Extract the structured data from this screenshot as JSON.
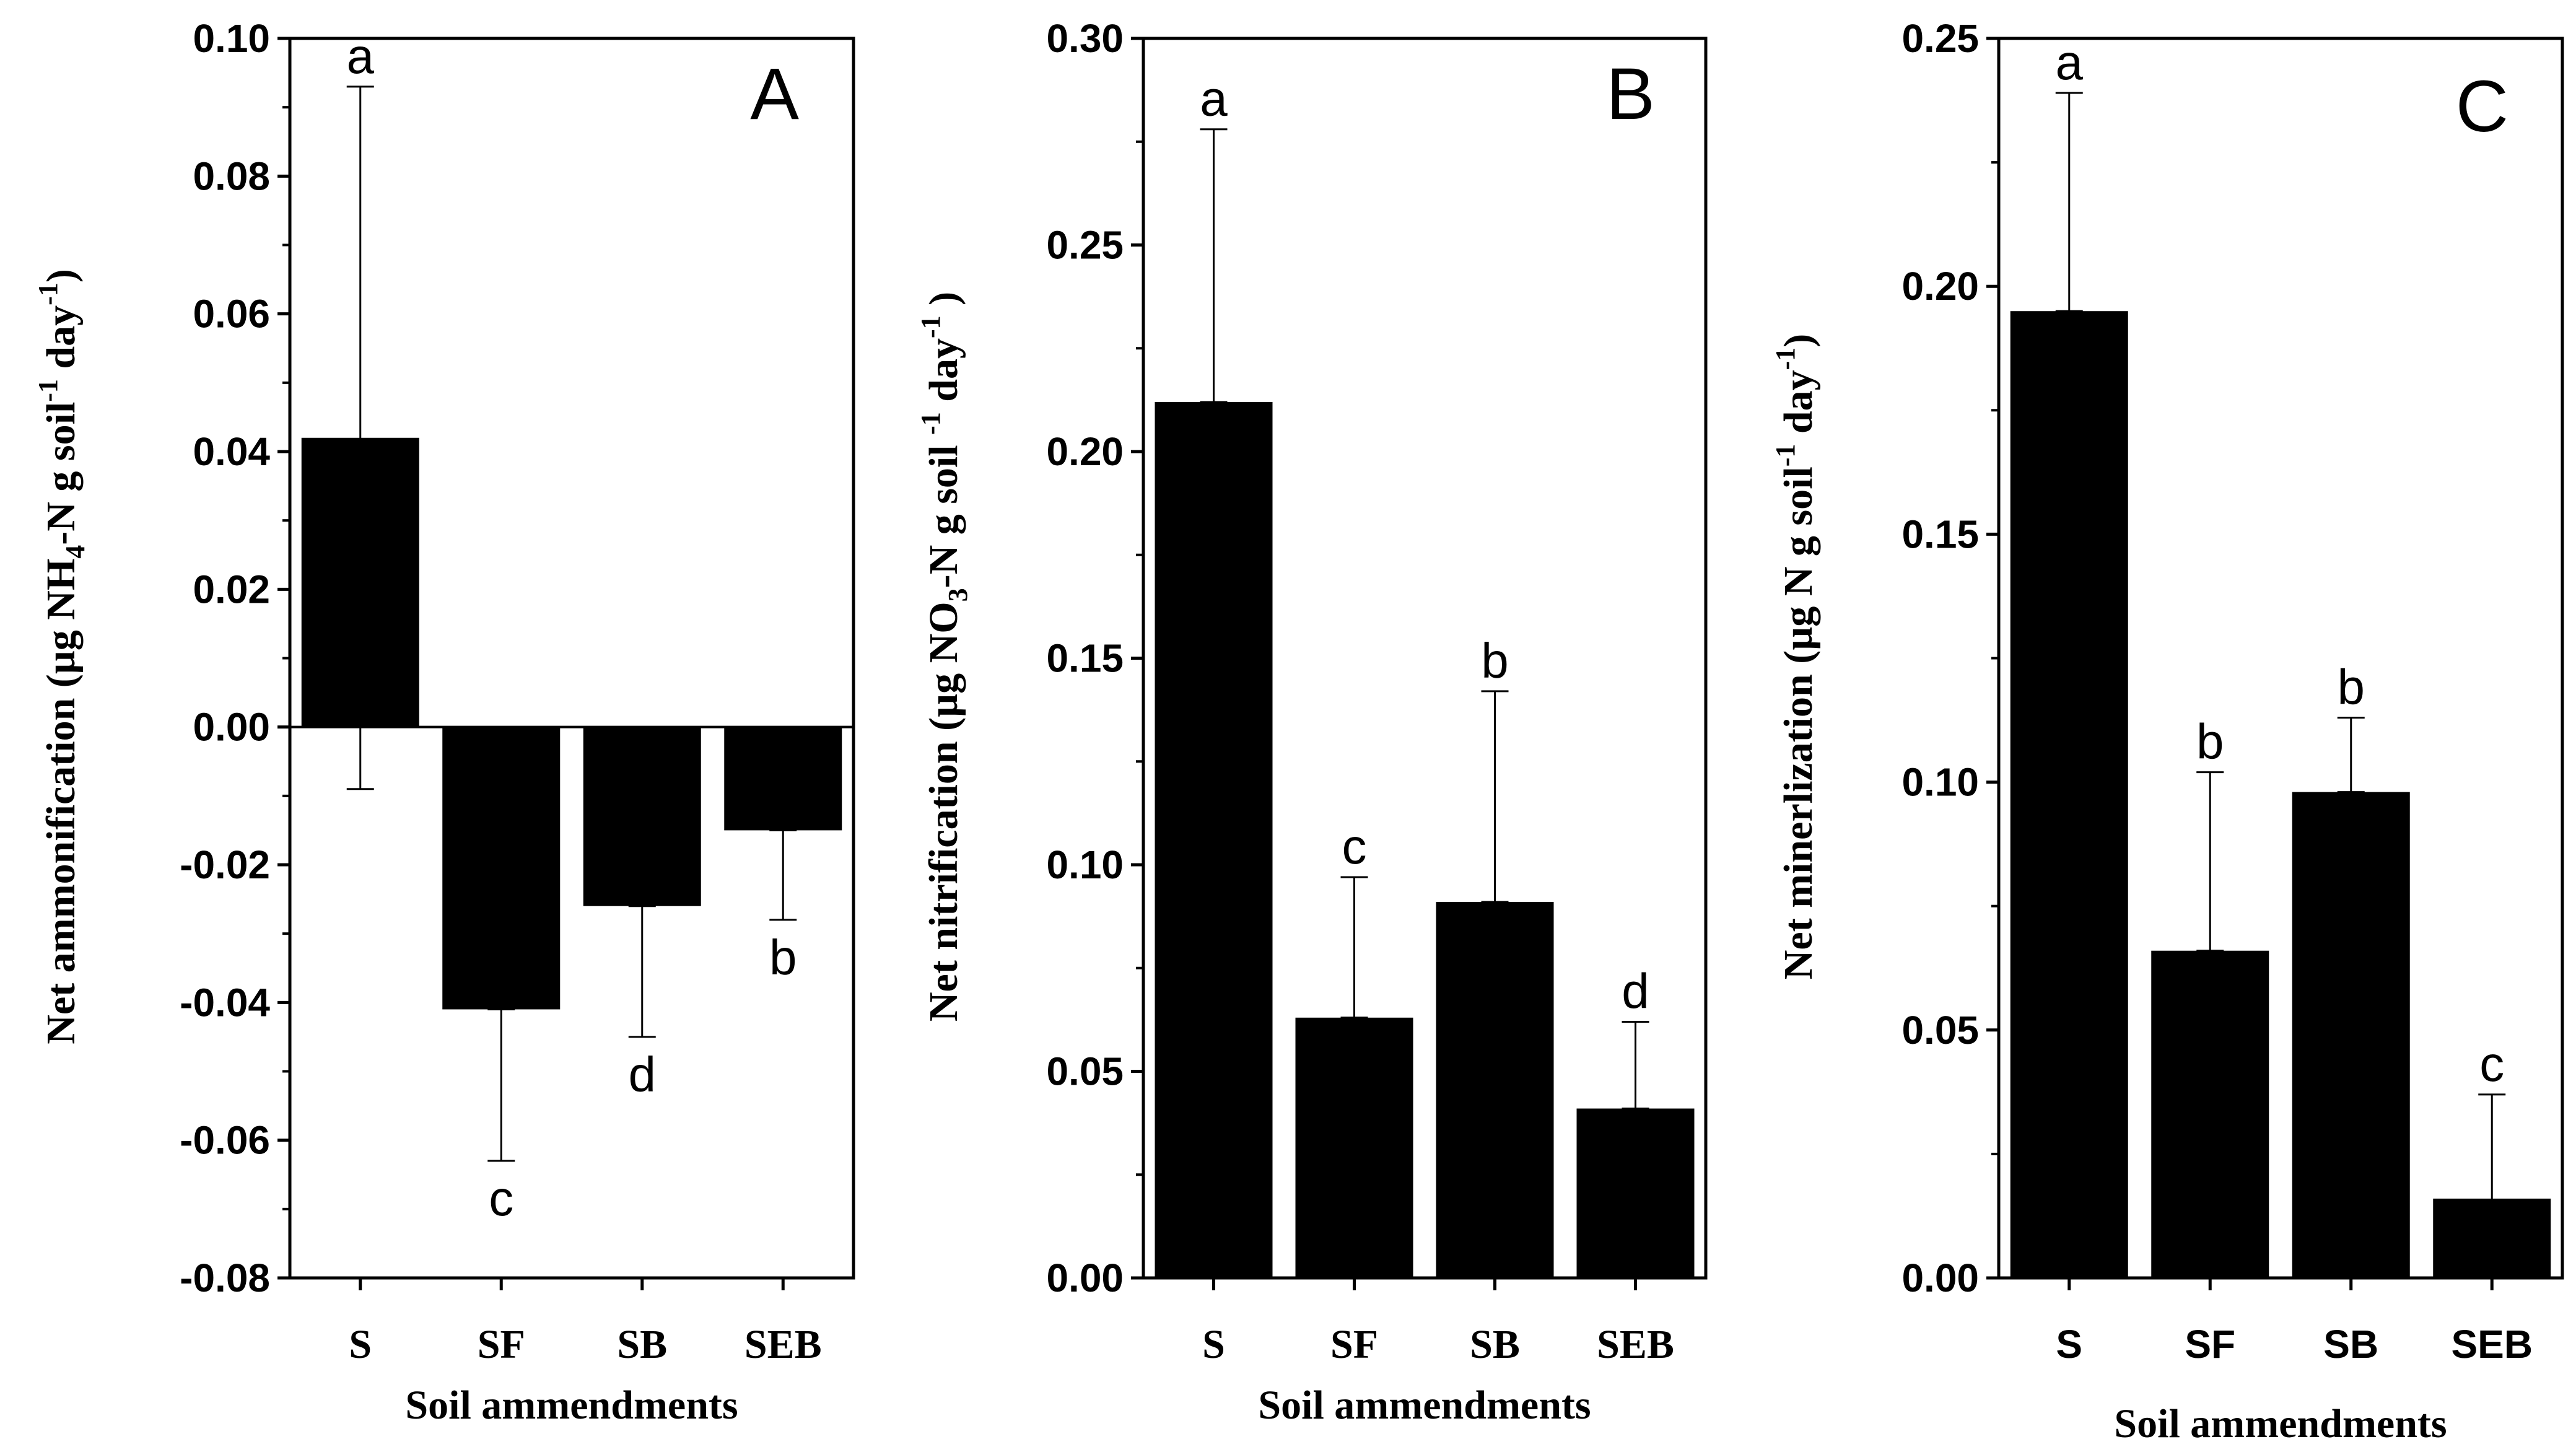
{
  "chart_data": [
    {
      "type": "bar",
      "panel_label": "A",
      "categories": [
        "S",
        "SF",
        "SB",
        "SEB"
      ],
      "values": [
        0.042,
        -0.041,
        -0.026,
        -0.015
      ],
      "error_bars": [
        {
          "low": -0.009,
          "high": 0.093
        },
        {
          "low": -0.063,
          "high": -0.041
        },
        {
          "low": -0.045,
          "high": -0.026
        },
        {
          "low": -0.028,
          "high": -0.015
        }
      ],
      "significance_letters": [
        "a",
        "c",
        "d",
        "b"
      ],
      "ylim": [
        -0.08,
        0.1
      ],
      "yticks": [
        "-0.08",
        "-0.06",
        "-0.04",
        "-0.02",
        "0.00",
        "0.02",
        "0.04",
        "0.06",
        "0.08",
        "0.10"
      ],
      "ylabel": {
        "pre": "Net ammonification  (µg NH",
        "sub": "4",
        "mid": "-N g soil",
        "sup": "-1",
        "post": " day",
        "sup2": "-1",
        "end": ")"
      },
      "xlabel": "Soil ammendments"
    },
    {
      "type": "bar",
      "panel_label": "B",
      "categories": [
        "S",
        "SF",
        "SB",
        "SEB"
      ],
      "values": [
        0.212,
        0.063,
        0.091,
        0.041
      ],
      "error_bars": [
        {
          "low": 0.212,
          "high": 0.278
        },
        {
          "low": 0.063,
          "high": 0.097
        },
        {
          "low": 0.091,
          "high": 0.142
        },
        {
          "low": 0.041,
          "high": 0.062
        }
      ],
      "significance_letters": [
        "a",
        "c",
        "b",
        "d"
      ],
      "ylim": [
        0,
        0.3
      ],
      "yticks": [
        "0.00",
        "0.05",
        "0.10",
        "0.15",
        "0.20",
        "0.25",
        "0.30"
      ],
      "ylabel": {
        "pre": "Net nitrification (µg NO",
        "sub": "3",
        "mid": "-N g soil ",
        "sup": "-1",
        "post": " day",
        "sup2": "-1",
        "end": " )"
      },
      "xlabel": "Soil ammendments"
    },
    {
      "type": "bar",
      "panel_label": "C",
      "categories": [
        "S",
        "SF",
        "SB",
        "SEB"
      ],
      "values": [
        0.195,
        0.066,
        0.098,
        0.016
      ],
      "error_bars": [
        {
          "low": 0.195,
          "high": 0.239
        },
        {
          "low": 0.066,
          "high": 0.102
        },
        {
          "low": 0.098,
          "high": 0.113
        },
        {
          "low": 0.004,
          "high": 0.037
        }
      ],
      "significance_letters": [
        "a",
        "b",
        "b",
        "c"
      ],
      "ylim": [
        0,
        0.25
      ],
      "yticks": [
        "0.00",
        "0.05",
        "0.10",
        "0.15",
        "0.20",
        "0.25"
      ],
      "ylabel": {
        "pre": "Net minerlization (µg N g soil",
        "sup": "-1",
        "post": " day",
        "sup2": "-1",
        "end": ")"
      },
      "xlabel": "Soil ammendments"
    }
  ]
}
